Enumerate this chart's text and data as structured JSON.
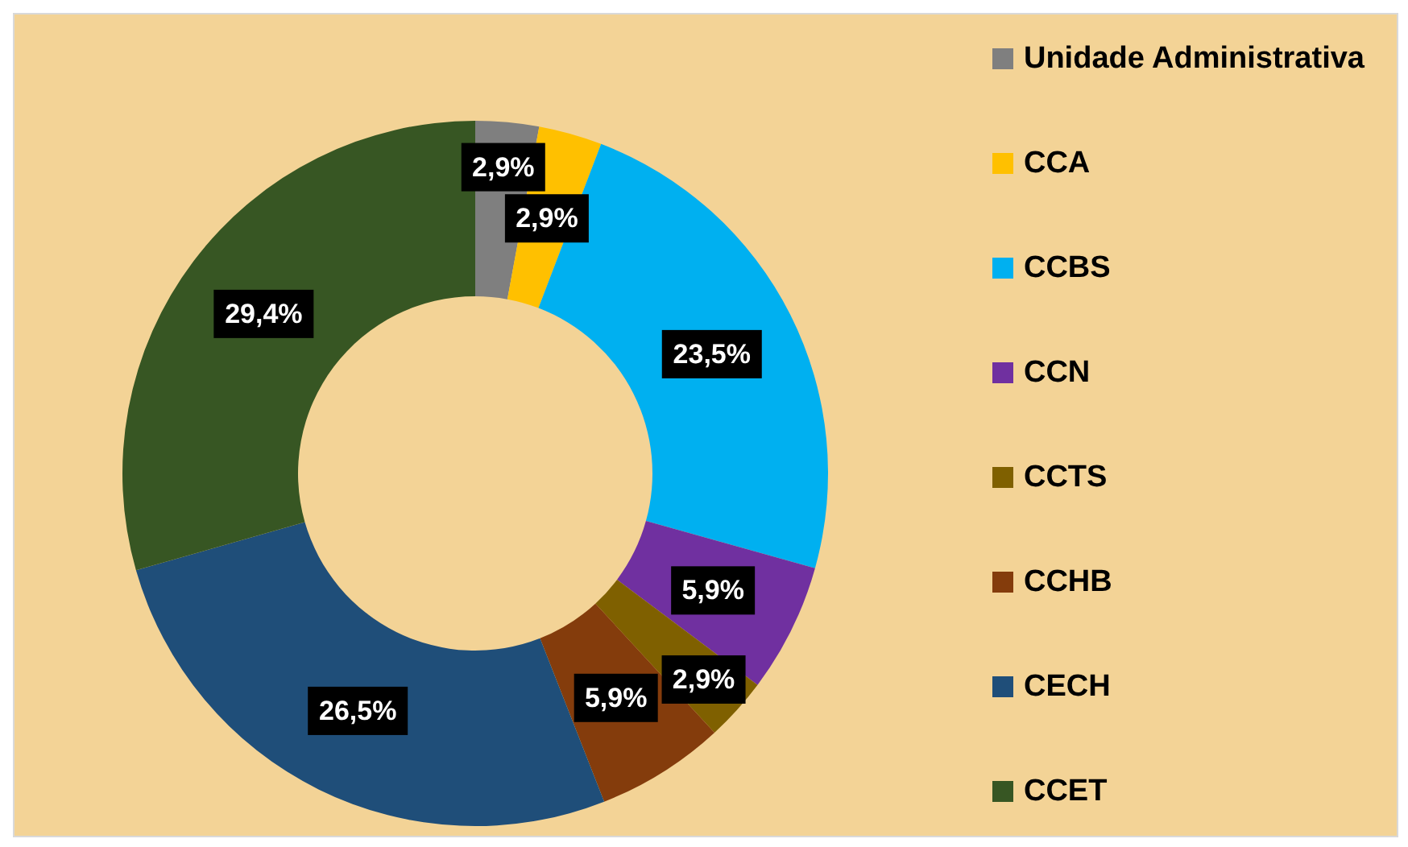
{
  "chart_data": {
    "type": "donut",
    "categories": [
      "Unidade Administrativa",
      "CCA",
      "CCBS",
      "CCN",
      "CCTS",
      "CCHB",
      "CECH",
      "CCET"
    ],
    "values": [
      2.9,
      2.9,
      23.5,
      5.9,
      2.9,
      5.9,
      26.5,
      29.4
    ],
    "value_labels": [
      "2,9%",
      "2,9%",
      "23,5%",
      "5,9%",
      "2,9%",
      "5,9%",
      "26,5%",
      "29,4%"
    ],
    "colors": [
      "#7f7f7f",
      "#ffc000",
      "#00b0f0",
      "#7030a0",
      "#7f6000",
      "#843c0c",
      "#1f4e79",
      "#375623"
    ],
    "legend": "right"
  }
}
